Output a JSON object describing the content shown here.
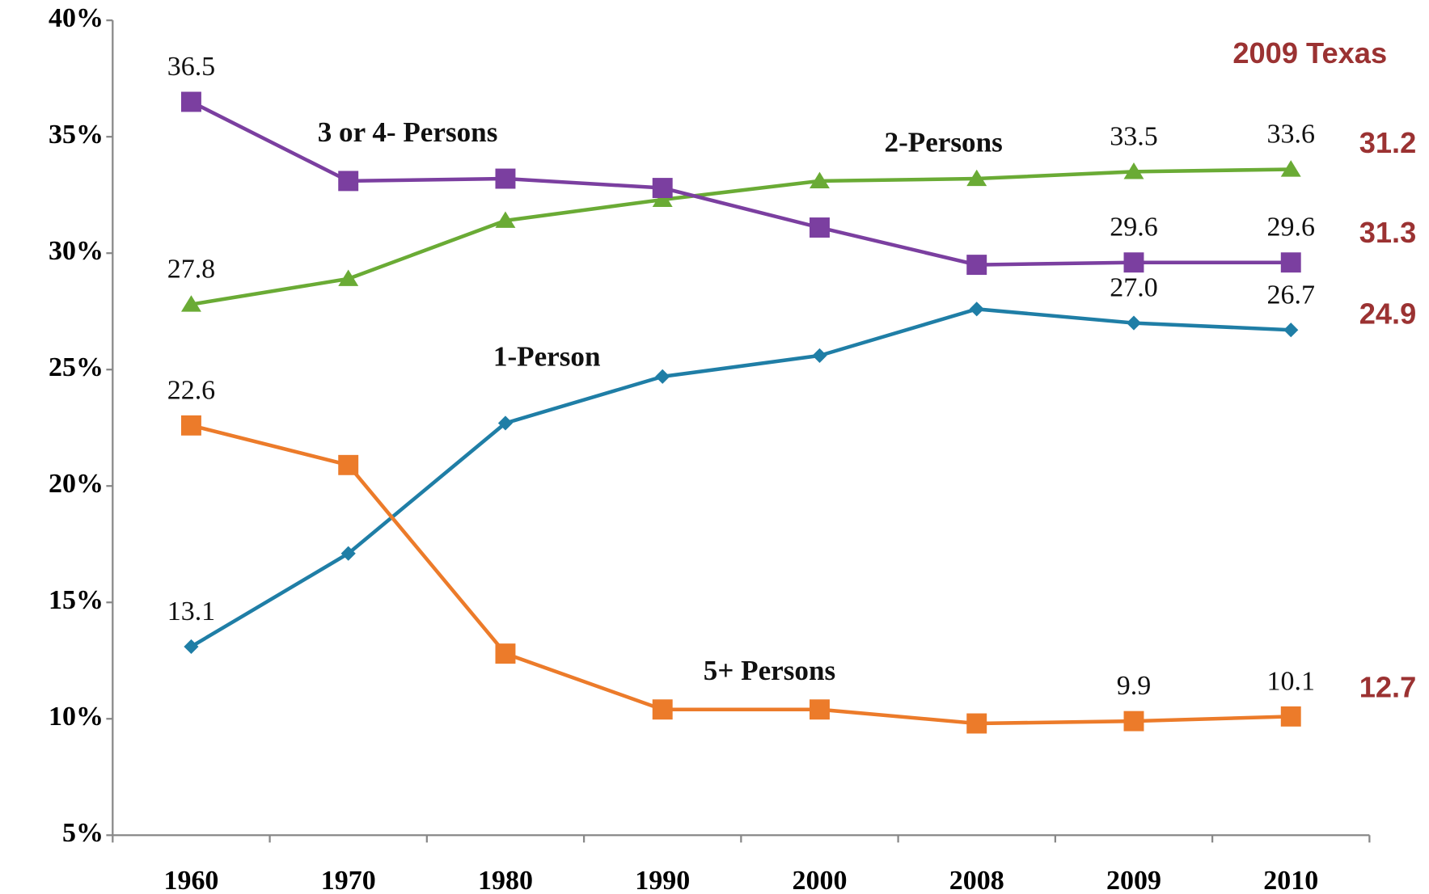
{
  "chart_data": {
    "type": "line",
    "categories": [
      "1960",
      "1970",
      "1980",
      "1990",
      "2000",
      "2008",
      "2009",
      "2010"
    ],
    "ylim": [
      5,
      40
    ],
    "yticks": [
      {
        "value": 5,
        "label": "5%"
      },
      {
        "value": 10,
        "label": "10%"
      },
      {
        "value": 15,
        "label": "15%"
      },
      {
        "value": 20,
        "label": "20%"
      },
      {
        "value": 25,
        "label": "25%"
      },
      {
        "value": 30,
        "label": "30%"
      },
      {
        "value": 35,
        "label": "35%"
      },
      {
        "value": 40,
        "label": "40%"
      }
    ],
    "grid": false,
    "annotation": "2009 Texas",
    "series": [
      {
        "name": "1-Person",
        "color": "#1f7ea6",
        "marker": "diamond",
        "values": [
          13.1,
          17.1,
          22.7,
          24.7,
          25.6,
          27.6,
          27.0,
          26.7
        ],
        "value_labels": [
          "13.1",
          null,
          null,
          null,
          null,
          null,
          "27.0",
          "26.7"
        ],
        "texas_2009": 24.9
      },
      {
        "name": "2-Persons",
        "color": "#6aab35",
        "marker": "triangle",
        "values": [
          27.8,
          28.9,
          31.4,
          32.3,
          33.1,
          33.2,
          33.5,
          33.6
        ],
        "value_labels": [
          "27.8",
          null,
          null,
          null,
          null,
          null,
          "33.5",
          "33.6"
        ],
        "texas_2009": 31.2
      },
      {
        "name": "3 or 4- Persons",
        "color": "#7b3fa0",
        "marker": "square",
        "values": [
          36.5,
          33.1,
          33.2,
          32.8,
          31.1,
          29.5,
          29.6,
          29.6
        ],
        "value_labels": [
          "36.5",
          null,
          null,
          null,
          null,
          null,
          "29.6",
          "29.6"
        ],
        "texas_2009": 31.3
      },
      {
        "name": "5+ Persons",
        "color": "#ec7b2a",
        "marker": "square",
        "values": [
          22.6,
          20.9,
          12.8,
          10.4,
          10.4,
          9.8,
          9.9,
          10.1
        ],
        "value_labels": [
          "22.6",
          null,
          null,
          null,
          null,
          null,
          "9.9",
          "10.1"
        ],
        "texas_2009": 12.7
      }
    ]
  }
}
